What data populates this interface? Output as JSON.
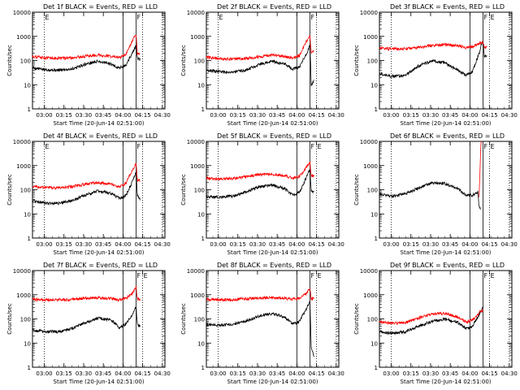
{
  "figure": {
    "ylabel": "Counts/sec",
    "xlabel": "Start Time (20-Jun-14 02:51:00)",
    "x_ticks": [
      "03:00",
      "03:15",
      "03:30",
      "03:45",
      "04:00",
      "04:15",
      "04:30"
    ],
    "y_ticks": [
      "1",
      "10",
      "100",
      "1000",
      "10000"
    ],
    "colors": {
      "events": "#000000",
      "lld": "#ff0000",
      "background": "#ffffff"
    }
  },
  "chart_data": [
    {
      "type": "line",
      "title": "Det 1f BLACK = Events, RED = LLD",
      "x_unit": "minutes after 02:51:00",
      "xlim": [
        0,
        101
      ],
      "ylim": [
        1,
        10000
      ],
      "yscale": "log",
      "flags": [
        "E",
        "F"
      ],
      "series": [
        {
          "name": "Events",
          "color": "#000000",
          "x": [
            0,
            10,
            20,
            30,
            40,
            50,
            60,
            66,
            71,
            76,
            78,
            79,
            80,
            82
          ],
          "y": [
            50,
            42,
            40,
            45,
            70,
            95,
            70,
            50,
            60,
            200,
            320,
            400,
            120,
            110
          ]
        },
        {
          "name": "LLD",
          "color": "#ff0000",
          "x": [
            0,
            10,
            20,
            30,
            40,
            50,
            60,
            66,
            71,
            76,
            78,
            79,
            80,
            82
          ],
          "y": [
            150,
            130,
            125,
            130,
            150,
            170,
            150,
            130,
            170,
            600,
            1000,
            1200,
            200,
            210
          ]
        }
      ]
    },
    {
      "type": "line",
      "title": "Det 2f BLACK = Events, RED = LLD",
      "x_unit": "minutes after 02:51:00",
      "xlim": [
        0,
        101
      ],
      "ylim": [
        1,
        10000
      ],
      "yscale": "log",
      "flags": [
        "E",
        "F"
      ],
      "series": [
        {
          "name": "Events",
          "color": "#000000",
          "x": [
            0,
            10,
            20,
            30,
            40,
            50,
            60,
            66,
            71,
            76,
            78,
            79,
            80,
            82
          ],
          "y": [
            40,
            35,
            33,
            40,
            70,
            95,
            70,
            45,
            55,
            180,
            300,
            450,
            10,
            15
          ]
        },
        {
          "name": "LLD",
          "color": "#ff0000",
          "x": [
            0,
            10,
            20,
            30,
            40,
            50,
            60,
            66,
            71,
            76,
            78,
            79,
            80,
            82
          ],
          "y": [
            140,
            120,
            115,
            120,
            145,
            170,
            150,
            125,
            160,
            600,
            900,
            1000,
            220,
            230
          ]
        }
      ]
    },
    {
      "type": "line",
      "title": "Det 3f BLACK = Events, RED = LLD",
      "x_unit": "minutes after 02:51:00",
      "xlim": [
        0,
        101
      ],
      "ylim": [
        1,
        10000
      ],
      "yscale": "log",
      "flags": [
        "F",
        "E"
      ],
      "series": [
        {
          "name": "Events",
          "color": "#000000",
          "x": [
            0,
            10,
            20,
            30,
            40,
            50,
            60,
            66,
            71,
            76,
            78,
            79,
            80,
            82
          ],
          "y": [
            30,
            22,
            25,
            60,
            100,
            80,
            40,
            25,
            35,
            200,
            500,
            600,
            150,
            160
          ]
        },
        {
          "name": "LLD",
          "color": "#ff0000",
          "x": [
            0,
            10,
            20,
            30,
            40,
            50,
            60,
            66,
            71,
            76,
            78,
            79,
            80,
            82
          ],
          "y": [
            320,
            310,
            310,
            350,
            420,
            460,
            410,
            350,
            370,
            500,
            560,
            600,
            370,
            360
          ]
        }
      ]
    },
    {
      "type": "line",
      "title": "Det 4f BLACK = Events, RED = LLD",
      "x_unit": "minutes after 02:51:00",
      "xlim": [
        0,
        101
      ],
      "ylim": [
        1,
        10000
      ],
      "yscale": "log",
      "flags": [
        "E",
        "F"
      ],
      "series": [
        {
          "name": "Events",
          "color": "#000000",
          "x": [
            0,
            10,
            20,
            30,
            40,
            50,
            60,
            66,
            71,
            76,
            78,
            79,
            80,
            82
          ],
          "y": [
            35,
            28,
            28,
            35,
            60,
            90,
            70,
            45,
            55,
            200,
            400,
            500,
            60,
            40
          ]
        },
        {
          "name": "LLD",
          "color": "#ff0000",
          "x": [
            0,
            10,
            20,
            30,
            40,
            50,
            60,
            66,
            71,
            76,
            78,
            79,
            80,
            82
          ],
          "y": [
            140,
            120,
            120,
            135,
            170,
            200,
            170,
            130,
            180,
            600,
            1000,
            1200,
            250,
            240
          ]
        }
      ]
    },
    {
      "type": "line",
      "title": "Det 5f BLACK = Events, RED = LLD",
      "x_unit": "minutes after 02:51:00",
      "xlim": [
        0,
        101
      ],
      "ylim": [
        1,
        10000
      ],
      "yscale": "log",
      "flags": [
        "F",
        "E"
      ],
      "series": [
        {
          "name": "Events",
          "color": "#000000",
          "x": [
            0,
            10,
            20,
            30,
            40,
            50,
            60,
            66,
            71,
            76,
            78,
            79,
            80,
            82
          ],
          "y": [
            50,
            50,
            55,
            80,
            130,
            160,
            110,
            60,
            80,
            300,
            550,
            600,
            90,
            80
          ]
        },
        {
          "name": "LLD",
          "color": "#ff0000",
          "x": [
            0,
            10,
            20,
            30,
            40,
            50,
            60,
            66,
            71,
            76,
            78,
            79,
            80,
            82
          ],
          "y": [
            300,
            280,
            290,
            350,
            420,
            440,
            380,
            300,
            360,
            800,
            1200,
            1300,
            380,
            390
          ]
        }
      ]
    },
    {
      "type": "line",
      "title": "Det 6f BLACK = Events, RED = LLD",
      "x_unit": "minutes after 02:51:00",
      "xlim": [
        0,
        101
      ],
      "ylim": [
        1,
        10000
      ],
      "yscale": "log",
      "flags": [
        "F",
        "E"
      ],
      "series": [
        {
          "name": "Events",
          "color": "#000000",
          "x": [
            0,
            10,
            20,
            30,
            40,
            50,
            60,
            66,
            71,
            75,
            76,
            77
          ],
          "y": [
            65,
            55,
            70,
            120,
            190,
            180,
            110,
            60,
            60,
            80,
            20,
            15
          ]
        },
        {
          "name": "LLD",
          "color": "#ff0000",
          "x": [
            76,
            77,
            77.5,
            78
          ],
          "y": [
            50,
            2000,
            10000,
            10000
          ]
        }
      ]
    },
    {
      "type": "line",
      "title": "Det 7f BLACK = Events, RED = LLD",
      "x_unit": "minutes after 02:51:00",
      "xlim": [
        0,
        101
      ],
      "ylim": [
        1,
        10000
      ],
      "yscale": "log",
      "flags": [
        "F",
        "E"
      ],
      "series": [
        {
          "name": "Events",
          "color": "#000000",
          "x": [
            0,
            10,
            20,
            30,
            40,
            50,
            60,
            66,
            71,
            76,
            78,
            79,
            80,
            82
          ],
          "y": [
            35,
            30,
            30,
            40,
            70,
            110,
            90,
            45,
            60,
            150,
            250,
            300,
            60,
            50
          ]
        },
        {
          "name": "LLD",
          "color": "#ff0000",
          "x": [
            0,
            10,
            20,
            30,
            40,
            50,
            60,
            66,
            71,
            76,
            78,
            79,
            80,
            82
          ],
          "y": [
            650,
            620,
            620,
            650,
            720,
            760,
            700,
            620,
            700,
            1100,
            1700,
            2000,
            650,
            660
          ]
        }
      ]
    },
    {
      "type": "line",
      "title": "Det 8f BLACK = Events, RED = LLD",
      "x_unit": "minutes after 02:51:00",
      "xlim": [
        0,
        101
      ],
      "ylim": [
        1,
        10000
      ],
      "yscale": "log",
      "flags": [
        "F",
        "E"
      ],
      "series": [
        {
          "name": "Events",
          "color": "#000000",
          "x": [
            0,
            10,
            20,
            30,
            40,
            50,
            60,
            66,
            71,
            76,
            78,
            79,
            80,
            82
          ],
          "y": [
            60,
            55,
            60,
            80,
            130,
            170,
            120,
            60,
            80,
            250,
            400,
            500,
            6,
            3
          ]
        },
        {
          "name": "LLD",
          "color": "#ff0000",
          "x": [
            0,
            10,
            20,
            30,
            40,
            50,
            60,
            66,
            71,
            76,
            78,
            79,
            80,
            82
          ],
          "y": [
            650,
            620,
            630,
            670,
            740,
            780,
            720,
            650,
            720,
            1100,
            1600,
            1800,
            700,
            700
          ]
        }
      ]
    },
    {
      "type": "line",
      "title": "Det 9f BLACK = Events, RED = LLD",
      "x_unit": "minutes after 02:51:00",
      "xlim": [
        0,
        101
      ],
      "ylim": [
        1,
        10000
      ],
      "yscale": "log",
      "flags": [
        "F",
        "E"
      ],
      "series": [
        {
          "name": "Events",
          "color": "#000000",
          "x": [
            0,
            10,
            20,
            30,
            40,
            50,
            60,
            66,
            71,
            76,
            78,
            79
          ],
          "y": [
            30,
            25,
            30,
            50,
            80,
            100,
            70,
            40,
            50,
            150,
            250,
            300
          ]
        },
        {
          "name": "LLD",
          "color": "#ff0000",
          "x": [
            0,
            10,
            20,
            30,
            40,
            50,
            60,
            66,
            71,
            76,
            78,
            79
          ],
          "y": [
            80,
            65,
            70,
            110,
            160,
            170,
            120,
            75,
            90,
            180,
            220,
            240
          ]
        }
      ]
    }
  ]
}
